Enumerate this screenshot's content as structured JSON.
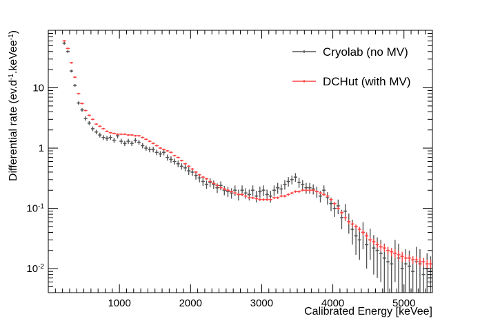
{
  "chart_data": {
    "type": "scatter",
    "title": "",
    "xlabel": "Calibrated Energy [keVee]",
    "ylabel": "Differential rate (ev.d-1.keVee-1)",
    "ylabel_parts": [
      "Differential rate (ev.d",
      "-1",
      ".keVee",
      "-1",
      ")"
    ],
    "xlim": [
      0,
      5400
    ],
    "ylim": [
      0.004,
      90
    ],
    "yscale": "log",
    "x_ticks": [
      1000,
      2000,
      3000,
      4000,
      5000
    ],
    "x_tick_labels": [
      "1000",
      "2000",
      "3000",
      "4000",
      "5000"
    ],
    "y_ticks": [
      0.01,
      0.1,
      1,
      10
    ],
    "y_tick_labels": [
      {
        "base": "10",
        "exp": "-2"
      },
      {
        "base": "10",
        "exp": "-1"
      },
      {
        "base": "1",
        "exp": ""
      },
      {
        "base": "10",
        "exp": ""
      }
    ],
    "legend_position": "top-right",
    "grid": false,
    "series": [
      {
        "name": "Cryolab (no MV)",
        "color": "#555555",
        "x": [
          225,
          275,
          325,
          375,
          425,
          475,
          525,
          575,
          625,
          675,
          725,
          775,
          825,
          875,
          925,
          975,
          1025,
          1075,
          1125,
          1175,
          1225,
          1275,
          1325,
          1375,
          1425,
          1475,
          1525,
          1575,
          1625,
          1675,
          1725,
          1775,
          1825,
          1875,
          1925,
          1975,
          2025,
          2075,
          2125,
          2175,
          2225,
          2275,
          2325,
          2375,
          2425,
          2475,
          2525,
          2575,
          2625,
          2675,
          2725,
          2775,
          2825,
          2875,
          2925,
          2975,
          3025,
          3075,
          3125,
          3175,
          3225,
          3275,
          3325,
          3375,
          3425,
          3475,
          3525,
          3575,
          3625,
          3675,
          3725,
          3775,
          3825,
          3875,
          3925,
          3975,
          4025,
          4075,
          4125,
          4175,
          4225,
          4275,
          4325,
          4375,
          4425,
          4475,
          4525,
          4575,
          4625,
          4675,
          4725,
          4775,
          4825,
          4875,
          4925,
          4975,
          5025,
          5075,
          5125,
          5175,
          5225,
          5275,
          5325,
          5375
        ],
        "y": [
          55,
          40,
          19,
          11,
          5.6,
          4.3,
          3.1,
          2.6,
          2.1,
          1.85,
          1.65,
          1.5,
          1.45,
          1.5,
          1.35,
          1.6,
          1.3,
          1.2,
          1.3,
          1.2,
          1.35,
          1.25,
          1.1,
          1.0,
          0.95,
          0.95,
          0.85,
          0.8,
          0.85,
          0.7,
          0.65,
          0.6,
          0.55,
          0.5,
          0.47,
          0.42,
          0.4,
          0.35,
          0.32,
          0.28,
          0.25,
          0.27,
          0.25,
          0.22,
          0.24,
          0.2,
          0.19,
          0.18,
          0.2,
          0.17,
          0.2,
          0.18,
          0.17,
          0.2,
          0.16,
          0.19,
          0.2,
          0.17,
          0.16,
          0.2,
          0.22,
          0.21,
          0.25,
          0.28,
          0.3,
          0.33,
          0.27,
          0.25,
          0.22,
          0.22,
          0.21,
          0.19,
          0.16,
          0.2,
          0.15,
          0.12,
          0.1,
          0.11,
          0.07,
          0.09,
          0.06,
          0.045,
          0.035,
          0.03,
          0.04,
          0.025,
          0.03,
          0.022,
          0.02,
          0.018,
          0.015,
          0.013,
          0.012,
          0.018,
          0.015,
          0.01,
          0.012,
          0.011,
          0.009,
          0.013,
          0.012,
          0.008,
          0.01,
          0.009
        ],
        "y_err": [
          3,
          2,
          1,
          0.6,
          0.35,
          0.3,
          0.25,
          0.2,
          0.18,
          0.16,
          0.15,
          0.14,
          0.14,
          0.14,
          0.13,
          0.15,
          0.13,
          0.12,
          0.13,
          0.12,
          0.13,
          0.12,
          0.11,
          0.1,
          0.1,
          0.1,
          0.09,
          0.09,
          0.09,
          0.08,
          0.08,
          0.07,
          0.07,
          0.06,
          0.06,
          0.06,
          0.055,
          0.05,
          0.05,
          0.045,
          0.04,
          0.045,
          0.04,
          0.04,
          0.04,
          0.035,
          0.035,
          0.035,
          0.04,
          0.035,
          0.04,
          0.035,
          0.035,
          0.04,
          0.035,
          0.04,
          0.04,
          0.035,
          0.035,
          0.04,
          0.045,
          0.04,
          0.045,
          0.05,
          0.05,
          0.055,
          0.05,
          0.045,
          0.045,
          0.045,
          0.04,
          0.04,
          0.035,
          0.04,
          0.035,
          0.03,
          0.028,
          0.03,
          0.025,
          0.028,
          0.022,
          0.02,
          0.018,
          0.016,
          0.019,
          0.015,
          0.016,
          0.014,
          0.013,
          0.012,
          0.011,
          0.01,
          0.009,
          0.012,
          0.011,
          0.008,
          0.009,
          0.009,
          0.007,
          0.01,
          0.009,
          0.007,
          0.008,
          0.007
        ]
      },
      {
        "name": "DCHut (with MV)",
        "color": "#ff4444",
        "x": [
          225,
          275,
          325,
          375,
          425,
          475,
          525,
          575,
          625,
          675,
          725,
          775,
          825,
          875,
          925,
          975,
          1025,
          1075,
          1125,
          1175,
          1225,
          1275,
          1325,
          1375,
          1425,
          1475,
          1525,
          1575,
          1625,
          1675,
          1725,
          1775,
          1825,
          1875,
          1925,
          1975,
          2025,
          2075,
          2125,
          2175,
          2225,
          2275,
          2325,
          2375,
          2425,
          2475,
          2525,
          2575,
          2625,
          2675,
          2725,
          2775,
          2825,
          2875,
          2925,
          2975,
          3025,
          3075,
          3125,
          3175,
          3225,
          3275,
          3325,
          3375,
          3425,
          3475,
          3525,
          3575,
          3625,
          3675,
          3725,
          3775,
          3825,
          3875,
          3925,
          3975,
          4025,
          4075,
          4125,
          4175,
          4225,
          4275,
          4325,
          4375,
          4425,
          4475,
          4525,
          4575,
          4625,
          4675,
          4725,
          4775,
          4825,
          4875,
          4925,
          4975,
          5025,
          5075,
          5125,
          5175,
          5225,
          5275,
          5325,
          5375
        ],
        "y": [
          60,
          45,
          26,
          15,
          8,
          5.5,
          4.2,
          3.5,
          3.0,
          2.5,
          2.3,
          2.1,
          1.9,
          1.8,
          1.75,
          1.7,
          1.7,
          1.7,
          1.65,
          1.65,
          1.6,
          1.6,
          1.5,
          1.4,
          1.3,
          1.2,
          1.1,
          1.0,
          0.95,
          0.9,
          0.85,
          0.75,
          0.7,
          0.62,
          0.55,
          0.5,
          0.45,
          0.4,
          0.36,
          0.33,
          0.31,
          0.28,
          0.26,
          0.24,
          0.22,
          0.21,
          0.2,
          0.19,
          0.18,
          0.17,
          0.17,
          0.16,
          0.15,
          0.15,
          0.145,
          0.14,
          0.14,
          0.14,
          0.14,
          0.15,
          0.15,
          0.16,
          0.16,
          0.17,
          0.18,
          0.19,
          0.19,
          0.2,
          0.2,
          0.2,
          0.2,
          0.19,
          0.18,
          0.17,
          0.16,
          0.14,
          0.12,
          0.1,
          0.085,
          0.07,
          0.06,
          0.055,
          0.05,
          0.045,
          0.04,
          0.035,
          0.03,
          0.028,
          0.025,
          0.023,
          0.022,
          0.02,
          0.019,
          0.018,
          0.017,
          0.016,
          0.015,
          0.015,
          0.014,
          0.014,
          0.013,
          0.013,
          0.012,
          0.012
        ],
        "y_err": [
          1,
          0.8,
          0.5,
          0.3,
          0.15,
          0.12,
          0.1,
          0.08,
          0.07,
          0.06,
          0.06,
          0.05,
          0.05,
          0.05,
          0.045,
          0.045,
          0.045,
          0.045,
          0.045,
          0.045,
          0.04,
          0.04,
          0.04,
          0.035,
          0.035,
          0.03,
          0.03,
          0.03,
          0.025,
          0.025,
          0.025,
          0.02,
          0.02,
          0.02,
          0.018,
          0.016,
          0.015,
          0.014,
          0.013,
          0.012,
          0.011,
          0.011,
          0.01,
          0.01,
          0.009,
          0.009,
          0.009,
          0.008,
          0.008,
          0.008,
          0.008,
          0.007,
          0.007,
          0.007,
          0.007,
          0.007,
          0.007,
          0.007,
          0.007,
          0.007,
          0.007,
          0.008,
          0.008,
          0.008,
          0.008,
          0.009,
          0.009,
          0.009,
          0.009,
          0.009,
          0.009,
          0.009,
          0.008,
          0.008,
          0.008,
          0.007,
          0.007,
          0.006,
          0.006,
          0.005,
          0.005,
          0.005,
          0.004,
          0.004,
          0.004,
          0.004,
          0.003,
          0.003,
          0.003,
          0.003,
          0.003,
          0.003,
          0.003,
          0.003,
          0.003,
          0.003,
          0.002,
          0.002,
          0.002,
          0.002,
          0.002,
          0.002,
          0.002,
          0.002
        ]
      }
    ]
  }
}
